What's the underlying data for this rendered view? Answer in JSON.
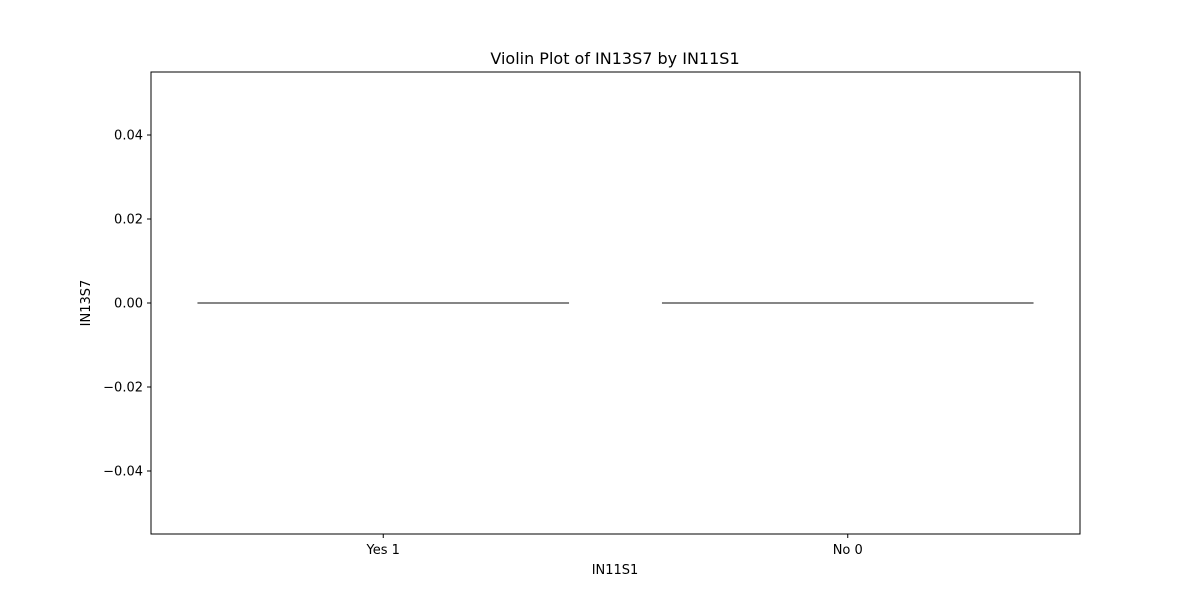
{
  "chart_data": {
    "type": "violin",
    "title": "Violin Plot of IN13S7 by IN11S1",
    "xlabel": "IN11S1",
    "ylabel": "IN13S7",
    "categories": [
      "Yes 1",
      "No 0"
    ],
    "series": [
      {
        "name": "Yes 1",
        "values": [
          0.0
        ]
      },
      {
        "name": "No 0",
        "values": [
          0.0
        ]
      }
    ],
    "ylim": [
      -0.055,
      0.055
    ],
    "yticks": [
      -0.04,
      -0.02,
      0.0,
      0.02,
      0.04
    ],
    "ytick_labels": [
      "−0.04",
      "−0.02",
      "0.00",
      "0.02",
      "0.04"
    ],
    "grid": false,
    "colors": {
      "axis": "#000000",
      "violin_line": "#3d3d3d",
      "background": "#ffffff"
    }
  }
}
